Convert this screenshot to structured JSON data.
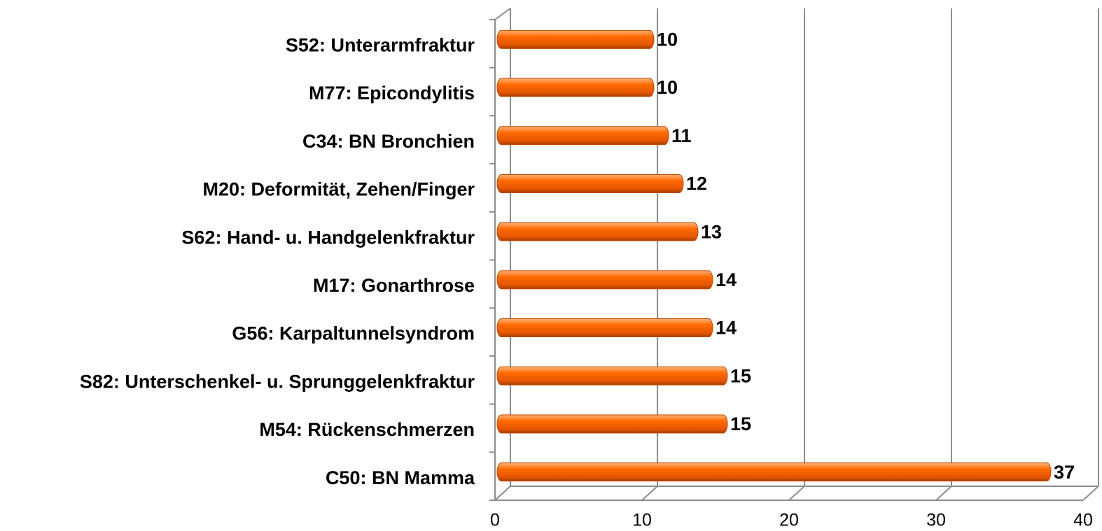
{
  "chart_data": {
    "type": "bar",
    "orientation": "horizontal",
    "categories": [
      "S52: Unterarmfraktur",
      "M77: Epicondylitis",
      "C34: BN Bronchien",
      "M20: Deformität, Zehen/Finger",
      "S62: Hand- u. Handgelenkfraktur",
      "M17: Gonarthrose",
      "G56: Karpaltunnelsyndrom",
      "S82: Unterschenkel- u. Sprunggelenkfraktur",
      "M54: Rückenschmerzen",
      "C50: BN Mamma"
    ],
    "values": [
      10,
      10,
      11,
      12,
      13,
      14,
      14,
      15,
      15,
      37
    ],
    "color": "#ff6a00",
    "xlim": [
      0,
      40
    ],
    "xticks": [
      0,
      10,
      20,
      30,
      40
    ],
    "grid": true
  }
}
